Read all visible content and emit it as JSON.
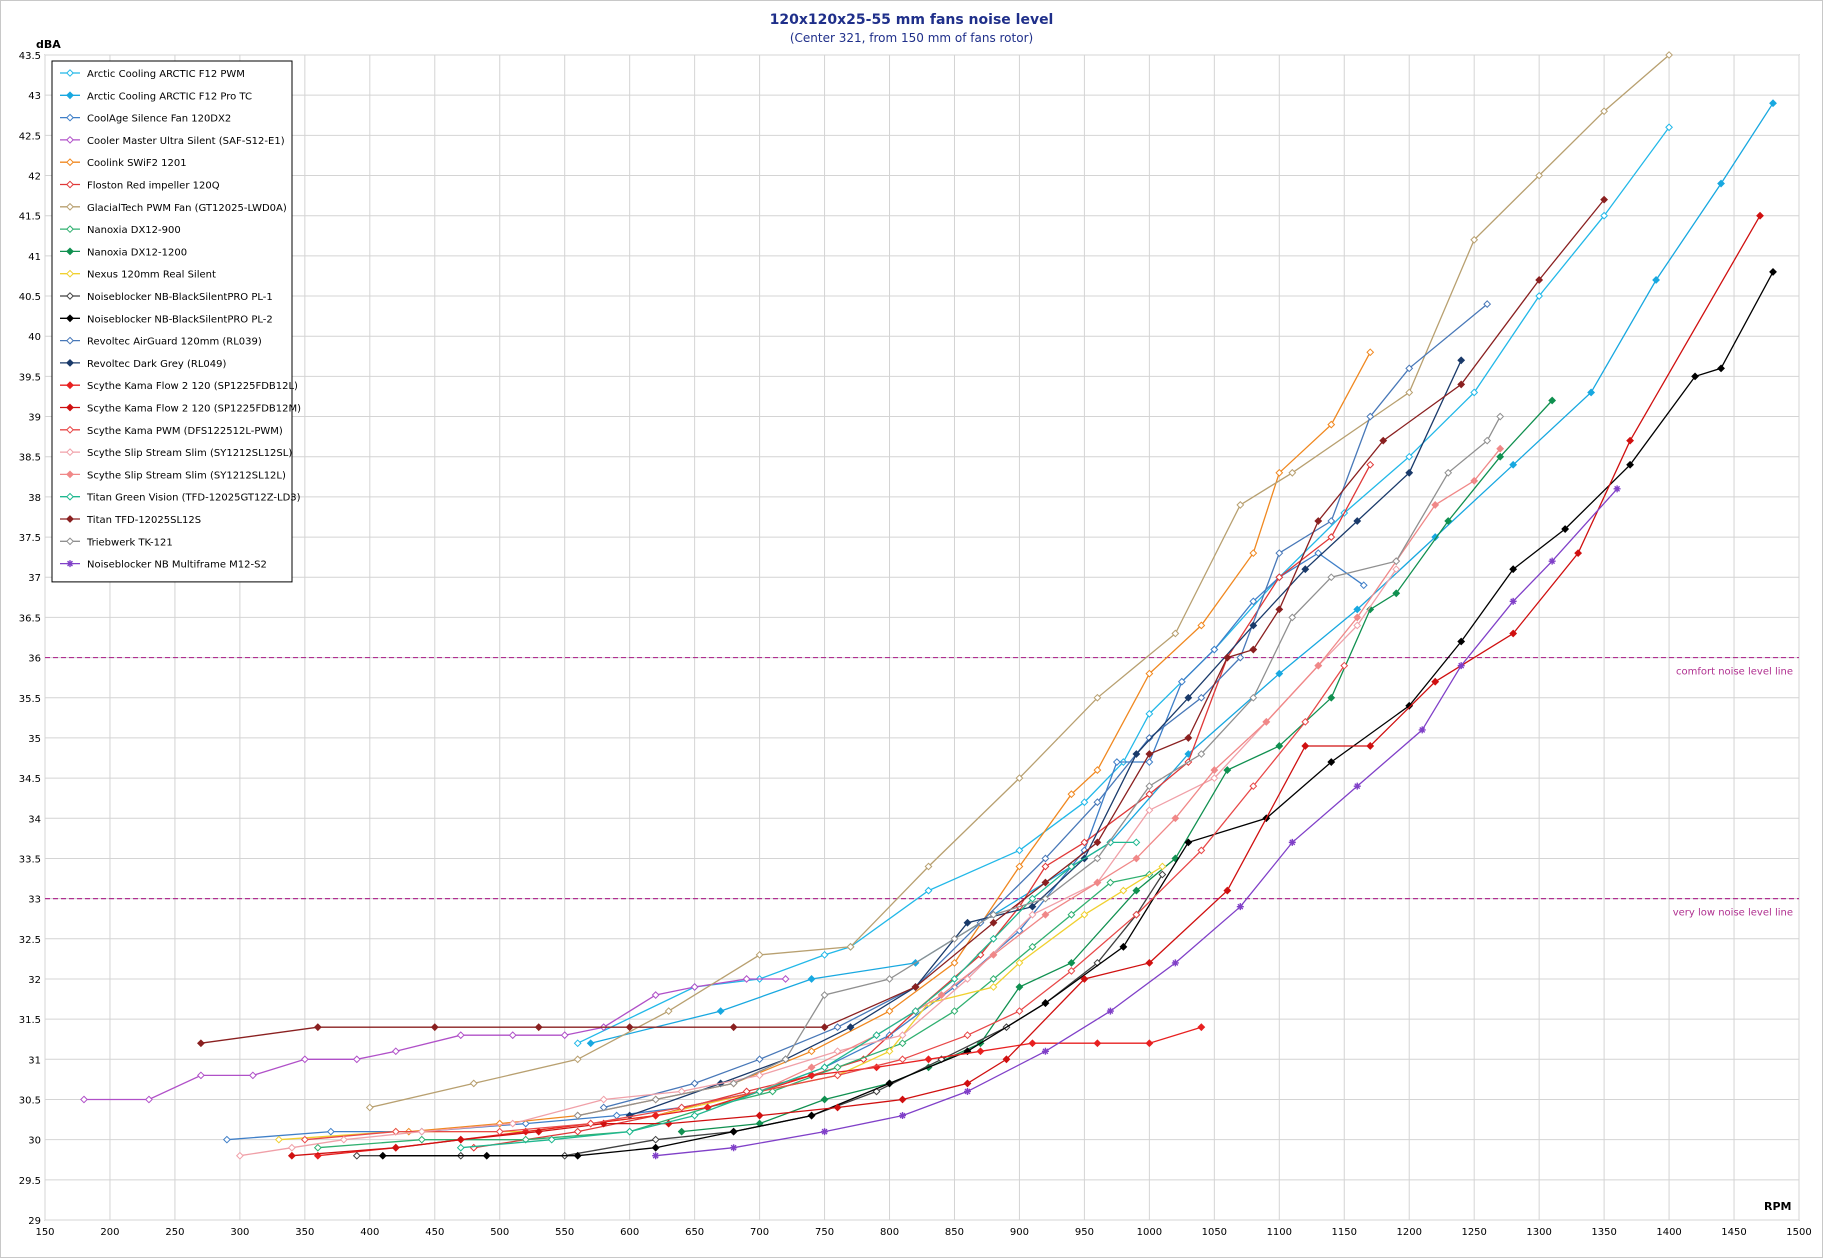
{
  "chart_data": {
    "type": "line",
    "title": "120x120x25-55 mm fans noise level",
    "subtitle": "(Center 321, from 150 mm of fans rotor)",
    "xlabel": "RPM",
    "ylabel": "dBA",
    "xlim": [
      150,
      1500
    ],
    "ylim": [
      29,
      43.5
    ],
    "xticks": [
      150,
      200,
      250,
      300,
      350,
      400,
      450,
      500,
      550,
      600,
      650,
      700,
      750,
      800,
      850,
      900,
      950,
      1000,
      1050,
      1100,
      1150,
      1200,
      1250,
      1300,
      1350,
      1400,
      1450,
      1500
    ],
    "yticks": [
      29,
      29.5,
      30,
      30.5,
      31,
      31.5,
      32,
      32.5,
      33,
      33.5,
      34,
      34.5,
      35,
      35.5,
      36,
      36.5,
      37,
      37.5,
      38,
      38.5,
      39,
      39.5,
      40,
      40.5,
      41,
      41.5,
      42,
      42.5,
      43,
      43.5
    ],
    "grid": true,
    "legend_position": "top-left",
    "reference_lines": [
      {
        "y": 36,
        "label": "comfort noise level line",
        "color": "#b03090"
      },
      {
        "y": 33,
        "label": "very low noise level line",
        "color": "#b03090"
      }
    ],
    "series": [
      {
        "name": "Arctic Cooling ARCTIC F12 PWM",
        "color": "#22b8e8",
        "marker": "open",
        "x": [
          560,
          650,
          700,
          750,
          770,
          830,
          900,
          950,
          980,
          1000,
          1050,
          1100,
          1150,
          1200,
          1250,
          1300,
          1350,
          1400
        ],
        "y": [
          31.2,
          31.9,
          32.0,
          32.3,
          32.4,
          33.1,
          33.6,
          34.2,
          34.7,
          35.3,
          36.1,
          37.0,
          37.8,
          38.5,
          39.3,
          40.5,
          41.5,
          42.6
        ]
      },
      {
        "name": "Arctic Cooling ARCTIC F12 Pro TC",
        "color": "#18a8e0",
        "marker": "filled",
        "x": [
          570,
          670,
          740,
          820,
          880,
          970,
          1030,
          1100,
          1160,
          1220,
          1280,
          1340,
          1390,
          1440,
          1480
        ],
        "y": [
          31.2,
          31.6,
          32.0,
          32.2,
          32.8,
          33.7,
          34.8,
          35.8,
          36.6,
          37.5,
          38.4,
          39.3,
          40.7,
          41.9,
          42.9
        ]
      },
      {
        "name": "CoolAge Silence Fan 120DX2",
        "color": "#3f7fc8",
        "marker": "open",
        "x": [
          290,
          370,
          440,
          520,
          590,
          640,
          700,
          750,
          800,
          850,
          900,
          950,
          975,
          1000,
          1025,
          1050,
          1080,
          1100,
          1130,
          1165
        ],
        "y": [
          30.0,
          30.1,
          30.1,
          30.2,
          30.3,
          30.4,
          30.6,
          30.9,
          31.3,
          31.9,
          32.6,
          33.6,
          34.7,
          34.7,
          35.7,
          36.1,
          36.7,
          37.0,
          37.3,
          36.9
        ]
      },
      {
        "name": "Cooler Master Ultra Silent (SAF-S12-E1)",
        "color": "#b050c8",
        "marker": "open",
        "x": [
          180,
          230,
          270,
          310,
          350,
          390,
          420,
          470,
          510,
          550,
          580,
          620,
          650,
          690,
          720
        ],
        "y": [
          30.5,
          30.5,
          30.8,
          30.8,
          31.0,
          31.0,
          31.1,
          31.3,
          31.3,
          31.3,
          31.4,
          31.8,
          31.9,
          32.0,
          32.0
        ]
      },
      {
        "name": "Coolink SWiF2 1201",
        "color": "#f08820",
        "marker": "open",
        "x": [
          430,
          500,
          560,
          620,
          680,
          740,
          800,
          850,
          900,
          940,
          960,
          1000,
          1040,
          1080,
          1100,
          1140,
          1170
        ],
        "y": [
          30.1,
          30.2,
          30.3,
          30.5,
          30.7,
          31.1,
          31.6,
          32.2,
          33.4,
          34.3,
          34.6,
          35.8,
          36.4,
          37.3,
          38.3,
          38.9,
          39.8
        ]
      },
      {
        "name": "Floston Red impeller 120Q",
        "color": "#e03838",
        "marker": "open",
        "x": [
          480,
          560,
          620,
          690,
          740,
          780,
          820,
          870,
          900,
          920,
          950,
          1000,
          1030,
          1060,
          1100,
          1140,
          1170
        ],
        "y": [
          29.9,
          30.1,
          30.3,
          30.6,
          30.8,
          31.0,
          31.6,
          32.3,
          32.9,
          33.4,
          33.7,
          34.3,
          34.7,
          36.0,
          37.0,
          37.5,
          38.4
        ]
      },
      {
        "name": "GlacialTech PWM Fan (GT12025-LWD0A)",
        "color": "#b8a070",
        "marker": "open",
        "x": [
          400,
          480,
          560,
          630,
          700,
          770,
          830,
          900,
          960,
          1020,
          1070,
          1110,
          1200,
          1250,
          1300,
          1350,
          1400
        ],
        "y": [
          30.4,
          30.7,
          31.0,
          31.6,
          32.3,
          32.4,
          33.4,
          34.5,
          35.5,
          36.3,
          37.9,
          38.3,
          39.3,
          41.2,
          42.0,
          42.8,
          43.5
        ]
      },
      {
        "name": "Nanoxia DX12-900",
        "color": "#30b070",
        "marker": "open",
        "x": [
          360,
          440,
          520,
          600,
          660,
          710,
          760,
          810,
          850,
          880,
          910,
          940,
          970,
          1000
        ],
        "y": [
          29.9,
          30.0,
          30.0,
          30.1,
          30.4,
          30.6,
          30.9,
          31.2,
          31.6,
          32.0,
          32.4,
          32.8,
          33.2,
          33.3
        ]
      },
      {
        "name": "Nanoxia DX12-1200",
        "color": "#109050",
        "marker": "filled",
        "x": [
          640,
          700,
          750,
          800,
          830,
          870,
          900,
          940,
          990,
          1020,
          1060,
          1100,
          1140,
          1170,
          1190,
          1230,
          1270,
          1310
        ],
        "y": [
          30.1,
          30.2,
          30.5,
          30.7,
          30.9,
          31.2,
          31.9,
          32.2,
          33.1,
          33.5,
          34.6,
          34.9,
          35.5,
          36.6,
          36.8,
          37.7,
          38.5,
          39.2
        ]
      },
      {
        "name": "Nexus 120mm Real Silent",
        "color": "#f0d030",
        "marker": "open",
        "x": [
          330,
          420,
          520,
          620,
          700,
          760,
          800,
          830,
          880,
          900,
          950,
          980,
          1010
        ],
        "y": [
          30.0,
          30.1,
          30.1,
          30.3,
          30.6,
          30.8,
          31.1,
          31.7,
          31.9,
          32.2,
          32.8,
          33.1,
          33.4
        ],
        "note": ""
      },
      {
        "name": "Noiseblocker NB-BlackSilentPRO PL-1",
        "color": "#404040",
        "marker": "open",
        "x": [
          390,
          470,
          550,
          620,
          680,
          740,
          790,
          840,
          890,
          920,
          960,
          990,
          1010
        ],
        "y": [
          29.8,
          29.8,
          29.8,
          30.0,
          30.1,
          30.3,
          30.6,
          31.0,
          31.4,
          31.7,
          32.2,
          32.8,
          33.3
        ]
      },
      {
        "name": "Noiseblocker NB-BlackSilentPRO PL-2",
        "color": "#000000",
        "marker": "filled",
        "x": [
          410,
          490,
          560,
          620,
          680,
          740,
          800,
          860,
          920,
          980,
          1030,
          1090,
          1140,
          1200,
          1240,
          1280,
          1320,
          1370,
          1420,
          1440,
          1480
        ],
        "y": [
          29.8,
          29.8,
          29.8,
          29.9,
          30.1,
          30.3,
          30.7,
          31.1,
          31.7,
          32.4,
          33.7,
          34.0,
          34.7,
          35.4,
          36.2,
          37.1,
          37.6,
          38.4,
          39.5,
          39.6,
          40.8
        ]
      },
      {
        "name": "Revoltec AirGuard 120mm (RL039)",
        "color": "#4878b8",
        "marker": "open",
        "x": [
          580,
          650,
          700,
          760,
          820,
          870,
          920,
          960,
          1000,
          1040,
          1070,
          1100,
          1140,
          1170,
          1200,
          1260
        ],
        "y": [
          30.4,
          30.7,
          31.0,
          31.4,
          31.9,
          32.7,
          33.5,
          34.2,
          35.0,
          35.5,
          36.0,
          37.3,
          37.7,
          39.0,
          39.6,
          40.4
        ]
      },
      {
        "name": "Revoltec Dark Grey (RL049)",
        "color": "#1a3a6a",
        "marker": "filled",
        "x": [
          600,
          670,
          720,
          770,
          820,
          860,
          910,
          950,
          990,
          1030,
          1080,
          1120,
          1160,
          1200,
          1240
        ],
        "y": [
          30.3,
          30.7,
          31.0,
          31.4,
          31.9,
          32.7,
          32.9,
          33.5,
          34.8,
          35.5,
          36.4,
          37.1,
          37.7,
          38.3,
          39.7
        ]
      },
      {
        "name": "Scythe Kama Flow 2 120 (SP1225FDB12L)",
        "color": "#e82020",
        "marker": "filled",
        "x": [
          360,
          420,
          470,
          520,
          570,
          620,
          660,
          700,
          740,
          790,
          830,
          870,
          910,
          960,
          1000,
          1040
        ],
        "y": [
          29.8,
          29.9,
          30.0,
          30.1,
          30.2,
          30.3,
          30.4,
          30.6,
          30.8,
          30.9,
          31.0,
          31.1,
          31.2,
          31.2,
          31.2,
          31.4
        ]
      },
      {
        "name": "Scythe Kama Flow 2 120 (SP1225FDB12M)",
        "color": "#d01010",
        "marker": "filled",
        "x": [
          340,
          420,
          470,
          530,
          580,
          630,
          700,
          760,
          810,
          860,
          890,
          950,
          1000,
          1060,
          1120,
          1170,
          1220,
          1280,
          1330,
          1370,
          1470
        ],
        "y": [
          29.8,
          29.9,
          30.0,
          30.1,
          30.2,
          30.2,
          30.3,
          30.4,
          30.5,
          30.7,
          31.0,
          32.0,
          32.2,
          33.1,
          34.9,
          34.9,
          35.7,
          36.3,
          37.3,
          38.7,
          41.5
        ]
      },
      {
        "name": "Scythe Kama PWM (DFS122512L-PWM)",
        "color": "#e84848",
        "marker": "open",
        "x": [
          350,
          420,
          500,
          570,
          640,
          700,
          760,
          810,
          860,
          900,
          940,
          990,
          1040,
          1080,
          1120,
          1150
        ],
        "y": [
          30.0,
          30.1,
          30.1,
          30.2,
          30.4,
          30.6,
          30.8,
          31.0,
          31.3,
          31.6,
          32.1,
          32.8,
          33.6,
          34.4,
          35.2,
          35.9
        ]
      },
      {
        "name": "Scythe Slip Stream Slim (SY1212SL12SL)",
        "color": "#f0a0a8",
        "marker": "open",
        "x": [
          300,
          340,
          380,
          440,
          510,
          580,
          640,
          700,
          760,
          810,
          860,
          910,
          960,
          1000,
          1050,
          1090,
          1130,
          1160,
          1190
        ],
        "y": [
          29.8,
          29.9,
          30.0,
          30.1,
          30.2,
          30.5,
          30.6,
          30.8,
          31.1,
          31.3,
          32.0,
          32.8,
          33.2,
          34.1,
          34.5,
          35.2,
          35.9,
          36.4,
          37.1
        ]
      },
      {
        "name": "Scythe Slip Stream Slim (SY1212SL12L)",
        "color": "#f08888",
        "marker": "filled",
        "x": [
          700,
          740,
          790,
          840,
          880,
          920,
          960,
          990,
          1020,
          1050,
          1090,
          1130,
          1160,
          1190,
          1220,
          1250,
          1270
        ],
        "y": [
          30.6,
          30.9,
          31.3,
          31.8,
          32.3,
          32.8,
          33.2,
          33.5,
          34.0,
          34.6,
          35.2,
          35.9,
          36.5,
          37.2,
          37.9,
          38.2,
          38.6
        ]
      },
      {
        "name": "Titan Green Vision (TFD-12025GT12Z-LD3)",
        "color": "#20b890",
        "marker": "open",
        "x": [
          470,
          540,
          600,
          650,
          700,
          750,
          790,
          820,
          850,
          880,
          910,
          940,
          970,
          990
        ],
        "y": [
          29.9,
          30.0,
          30.1,
          30.3,
          30.6,
          30.9,
          31.3,
          31.6,
          32.0,
          32.5,
          33.0,
          33.4,
          33.7,
          33.7
        ]
      },
      {
        "name": "Titan TFD-12025SL12S",
        "color": "#8a2020",
        "marker": "filled",
        "x": [
          270,
          360,
          450,
          530,
          600,
          680,
          750,
          820,
          880,
          920,
          960,
          1000,
          1030,
          1060,
          1080,
          1100,
          1130,
          1180,
          1240,
          1300,
          1350
        ],
        "y": [
          31.2,
          31.4,
          31.4,
          31.4,
          31.4,
          31.4,
          31.4,
          31.9,
          32.7,
          33.2,
          33.7,
          34.8,
          35.0,
          36.0,
          36.1,
          36.6,
          37.7,
          38.7,
          39.4,
          40.7,
          41.7
        ]
      },
      {
        "name": "Triebwerk TK-121",
        "color": "#909090",
        "marker": "open",
        "x": [
          560,
          620,
          680,
          720,
          750,
          800,
          850,
          880,
          920,
          960,
          1000,
          1040,
          1080,
          1110,
          1140,
          1190,
          1230,
          1260,
          1270
        ],
        "y": [
          30.3,
          30.5,
          30.7,
          31.0,
          31.8,
          32.0,
          32.5,
          32.8,
          33.0,
          33.5,
          34.4,
          34.8,
          35.5,
          36.5,
          37.0,
          37.2,
          38.3,
          38.7,
          39.0
        ]
      },
      {
        "name": "Noiseblocker NB Multiframe M12-S2",
        "color": "#8040c8",
        "marker": "star",
        "x": [
          620,
          680,
          750,
          810,
          860,
          920,
          970,
          1020,
          1070,
          1110,
          1160,
          1210,
          1240,
          1280,
          1310,
          1360
        ],
        "y": [
          29.8,
          29.9,
          30.1,
          30.3,
          30.6,
          31.1,
          31.6,
          32.2,
          32.9,
          33.7,
          34.4,
          35.1,
          35.9,
          36.7,
          37.2,
          38.1
        ]
      }
    ]
  }
}
